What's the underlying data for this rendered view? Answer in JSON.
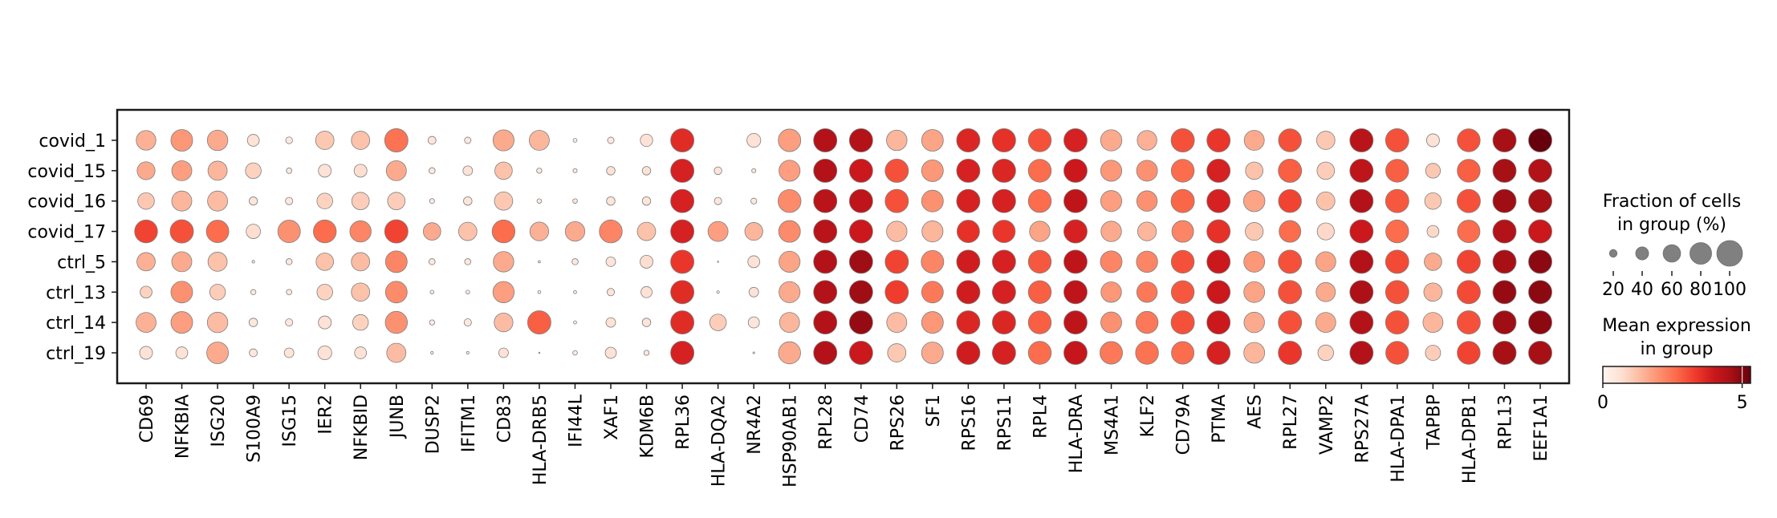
{
  "chart_data": {
    "type": "dotplot",
    "title": "",
    "xlabel": "",
    "ylabel": "",
    "groups": [
      "covid_1",
      "covid_15",
      "covid_16",
      "covid_17",
      "ctrl_5",
      "ctrl_13",
      "ctrl_14",
      "ctrl_19"
    ],
    "genes": [
      "CD69",
      "NFKBIA",
      "ISG20",
      "S100A9",
      "ISG15",
      "IER2",
      "NFKBID",
      "JUNB",
      "DUSP2",
      "IFITM1",
      "CD83",
      "HLA-DRB5",
      "IFI44L",
      "XAF1",
      "KDM6B",
      "RPL36",
      "HLA-DQA2",
      "NR4A2",
      "HSP90AB1",
      "RPL28",
      "CD74",
      "RPS26",
      "SF1",
      "RPS16",
      "RPS11",
      "RPL4",
      "HLA-DRA",
      "MS4A1",
      "KLF2",
      "CD79A",
      "PTMA",
      "AES",
      "RPL27",
      "VAMP2",
      "RPS27A",
      "HLA-DPA1",
      "TAPBP",
      "HLA-DPB1",
      "RPL13",
      "EEF1A1"
    ],
    "fraction_pct": [
      [
        70,
        80,
        74,
        36,
        17,
        64,
        64,
        88,
        21,
        16,
        77,
        72,
        8,
        16,
        38,
        88,
        0,
        44,
        84,
        88,
        88,
        74,
        80,
        88,
        88,
        86,
        88,
        78,
        70,
        88,
        88,
        72,
        86,
        64,
        88,
        88,
        40,
        86,
        88,
        88
      ],
      [
        62,
        72,
        68,
        52,
        13,
        40,
        40,
        72,
        15,
        27,
        60,
        12,
        9,
        23,
        23,
        88,
        20,
        9,
        77,
        88,
        88,
        88,
        80,
        88,
        88,
        86,
        88,
        77,
        76,
        86,
        88,
        60,
        88,
        60,
        88,
        86,
        48,
        86,
        88,
        88
      ],
      [
        56,
        72,
        72,
        22,
        19,
        52,
        60,
        60,
        11,
        23,
        64,
        10,
        10,
        23,
        23,
        88,
        19,
        14,
        86,
        88,
        88,
        88,
        80,
        88,
        88,
        86,
        88,
        77,
        74,
        88,
        88,
        78,
        86,
        64,
        88,
        88,
        56,
        88,
        88,
        88
      ],
      [
        86,
        88,
        84,
        46,
        84,
        86,
        78,
        88,
        60,
        64,
        86,
        66,
        70,
        86,
        64,
        88,
        72,
        62,
        80,
        88,
        88,
        74,
        77,
        84,
        84,
        74,
        88,
        74,
        66,
        80,
        88,
        62,
        80,
        58,
        88,
        86,
        36,
        84,
        88,
        88
      ],
      [
        64,
        72,
        68,
        5,
        15,
        60,
        64,
        80,
        15,
        15,
        74,
        4,
        15,
        27,
        40,
        88,
        2,
        36,
        77,
        88,
        88,
        88,
        84,
        88,
        88,
        86,
        88,
        80,
        78,
        86,
        88,
        76,
        88,
        72,
        88,
        88,
        60,
        88,
        88,
        88
      ],
      [
        36,
        80,
        52,
        12,
        13,
        52,
        64,
        80,
        8,
        8,
        78,
        6,
        6,
        19,
        33,
        88,
        5,
        27,
        77,
        88,
        88,
        88,
        80,
        88,
        88,
        86,
        88,
        74,
        74,
        86,
        88,
        76,
        88,
        68,
        88,
        88,
        64,
        88,
        88,
        88
      ],
      [
        72,
        80,
        74,
        23,
        19,
        40,
        52,
        82,
        12,
        19,
        66,
        88,
        6,
        27,
        23,
        88,
        56,
        33,
        72,
        88,
        88,
        72,
        80,
        88,
        88,
        86,
        88,
        76,
        82,
        88,
        88,
        74,
        88,
        72,
        88,
        88,
        72,
        88,
        88,
        88
      ],
      [
        40,
        36,
        80,
        21,
        27,
        44,
        36,
        68,
        5,
        5,
        27,
        2,
        10,
        33,
        12,
        88,
        0,
        3,
        82,
        88,
        88,
        64,
        80,
        88,
        88,
        86,
        88,
        84,
        86,
        84,
        88,
        76,
        88,
        52,
        88,
        86,
        50,
        86,
        88,
        88
      ]
    ],
    "mean_expression": [
      [
        1.5,
        1.9,
        1.6,
        0.6,
        0.4,
        1.1,
        1.2,
        2.5,
        0.5,
        0.4,
        1.6,
        1.4,
        0.3,
        0.4,
        0.6,
        3.6,
        0.0,
        0.6,
        1.8,
        4.4,
        4.4,
        1.4,
        1.7,
        3.7,
        3.5,
        3.0,
        3.8,
        1.6,
        1.5,
        3.0,
        3.4,
        1.6,
        3.0,
        1.1,
        4.3,
        3.0,
        0.6,
        3.0,
        4.6,
        5.3
      ],
      [
        1.6,
        1.8,
        1.4,
        0.9,
        0.4,
        0.6,
        0.7,
        1.6,
        0.4,
        0.6,
        1.2,
        0.4,
        0.4,
        0.6,
        0.6,
        3.8,
        0.5,
        0.5,
        1.8,
        4.4,
        4.0,
        3.0,
        1.9,
        3.8,
        3.7,
        2.6,
        4.0,
        1.9,
        2.0,
        2.6,
        3.8,
        1.2,
        2.8,
        1.0,
        4.2,
        2.8,
        1.1,
        2.8,
        4.6,
        4.4
      ],
      [
        1.1,
        1.4,
        1.3,
        0.5,
        0.4,
        0.9,
        1.0,
        1.0,
        0.3,
        0.5,
        1.1,
        0.3,
        0.4,
        0.5,
        0.5,
        3.8,
        0.5,
        0.4,
        2.1,
        4.3,
        4.2,
        3.0,
        2.0,
        3.8,
        3.8,
        2.6,
        4.2,
        1.8,
        2.0,
        2.7,
        3.8,
        1.7,
        3.2,
        1.2,
        4.4,
        2.9,
        1.1,
        3.0,
        4.7,
        4.6
      ],
      [
        3.2,
        3.0,
        2.6,
        0.7,
        2.0,
        2.6,
        2.2,
        3.2,
        1.6,
        1.2,
        2.6,
        1.5,
        1.6,
        2.2,
        1.2,
        3.8,
        1.8,
        1.4,
        2.1,
        4.3,
        4.0,
        1.3,
        1.4,
        3.5,
        3.4,
        1.7,
        3.8,
        1.6,
        1.4,
        2.2,
        3.5,
        1.1,
        2.6,
        0.8,
        4.0,
        2.6,
        0.8,
        2.6,
        4.4,
        4.0
      ],
      [
        1.5,
        1.6,
        1.2,
        0.5,
        0.4,
        1.2,
        1.3,
        2.2,
        0.4,
        0.4,
        1.6,
        0.3,
        0.4,
        0.5,
        0.7,
        3.4,
        0.2,
        0.6,
        1.7,
        4.4,
        4.7,
        3.2,
        2.2,
        3.9,
        3.8,
        2.9,
        4.2,
        2.2,
        2.2,
        3.0,
        4.0,
        1.9,
        3.0,
        1.7,
        4.4,
        3.1,
        1.6,
        3.2,
        4.6,
        4.9
      ],
      [
        0.9,
        2.0,
        1.0,
        0.4,
        0.4,
        0.9,
        1.2,
        2.1,
        0.3,
        0.3,
        1.8,
        0.3,
        0.3,
        0.5,
        0.6,
        3.6,
        0.3,
        0.6,
        1.6,
        4.4,
        4.7,
        3.3,
        2.4,
        3.9,
        3.8,
        2.8,
        4.2,
        1.9,
        2.4,
        2.9,
        4.0,
        1.7,
        3.0,
        1.6,
        4.5,
        3.0,
        1.4,
        3.1,
        4.8,
        4.9
      ],
      [
        1.5,
        1.8,
        1.3,
        0.4,
        0.4,
        0.6,
        0.9,
        2.0,
        0.3,
        0.4,
        1.3,
        2.8,
        0.3,
        0.6,
        0.5,
        3.6,
        1.0,
        0.5,
        1.4,
        4.4,
        4.8,
        1.3,
        1.9,
        3.7,
        3.7,
        2.8,
        4.2,
        2.0,
        2.4,
        3.0,
        4.0,
        1.6,
        3.0,
        1.6,
        4.4,
        3.0,
        1.4,
        3.0,
        4.7,
        4.9
      ],
      [
        0.6,
        0.6,
        1.6,
        0.4,
        0.5,
        0.6,
        0.6,
        1.3,
        0.3,
        0.3,
        0.6,
        0.3,
        0.3,
        0.6,
        0.4,
        3.8,
        0.0,
        0.3,
        1.6,
        4.4,
        4.0,
        1.1,
        1.6,
        3.9,
        3.8,
        2.6,
        4.1,
        2.4,
        2.5,
        2.6,
        3.8,
        1.4,
        3.4,
        0.9,
        4.4,
        3.0,
        1.0,
        3.2,
        4.6,
        4.6
      ]
    ],
    "size_legend": {
      "title_line1": "Fraction of cells",
      "title_line2": "in group (%)",
      "values": [
        20,
        40,
        60,
        80,
        100
      ],
      "labels": [
        "20",
        "40",
        "60",
        "80",
        "100"
      ]
    },
    "color_legend": {
      "title_line1": "Mean expression",
      "title_line2": "in group",
      "colormap": "Reds",
      "vmin": 0,
      "vmax": 5.3,
      "ticks": [
        0,
        5
      ],
      "tick_labels": [
        "0",
        "5"
      ]
    },
    "colors": {
      "reds_stops": [
        "#fff5f0",
        "#fee0d2",
        "#fcbba1",
        "#fc9272",
        "#fb6a4a",
        "#ef3b2c",
        "#cb181d",
        "#a50f15",
        "#67000d"
      ],
      "dot_edge": "#7f7f7f",
      "legend_dot": "#808080",
      "frame": "#000000"
    }
  }
}
